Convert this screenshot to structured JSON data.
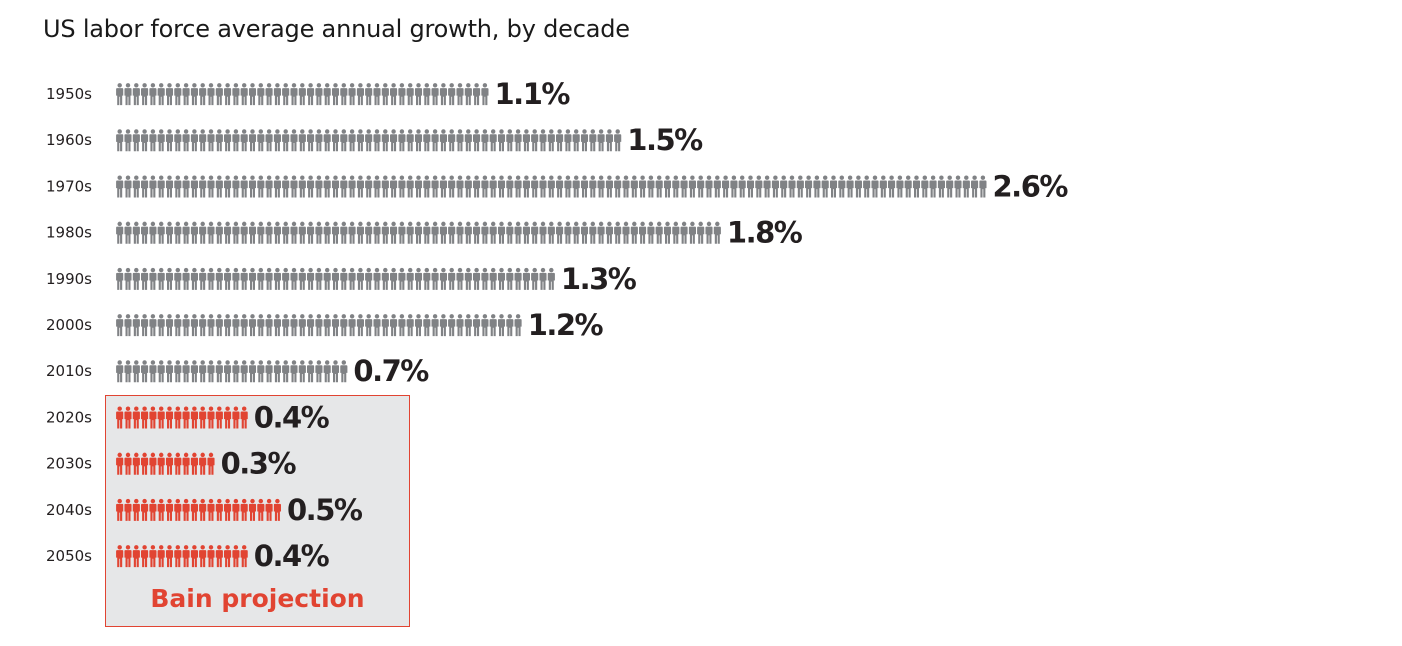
{
  "chart_data": {
    "type": "bar",
    "title": "US labor force average annual growth, by decade",
    "categories": [
      "1950s",
      "1960s",
      "1970s",
      "1980s",
      "1990s",
      "2000s",
      "2010s",
      "2020s",
      "2030s",
      "2040s",
      "2050s"
    ],
    "values": [
      1.1,
      1.5,
      2.6,
      1.8,
      1.3,
      1.2,
      0.7,
      0.4,
      0.3,
      0.5,
      0.4
    ],
    "value_labels": [
      "1.1%",
      "1.5%",
      "2.6%",
      "1.8%",
      "1.3%",
      "1.2%",
      "0.7%",
      "0.4%",
      "0.3%",
      "0.5%",
      "0.4%"
    ],
    "unit": "%",
    "projection": {
      "label": "Bain projection",
      "categories": [
        "2020s",
        "2030s",
        "2040s",
        "2050s"
      ]
    },
    "colors": {
      "historical": "#808285",
      "projection": "#e14432",
      "projection_box_fill": "#e6e7e8",
      "value_label": "#231f20"
    },
    "icon": "person-icon",
    "xlabel": "",
    "ylabel": ""
  }
}
